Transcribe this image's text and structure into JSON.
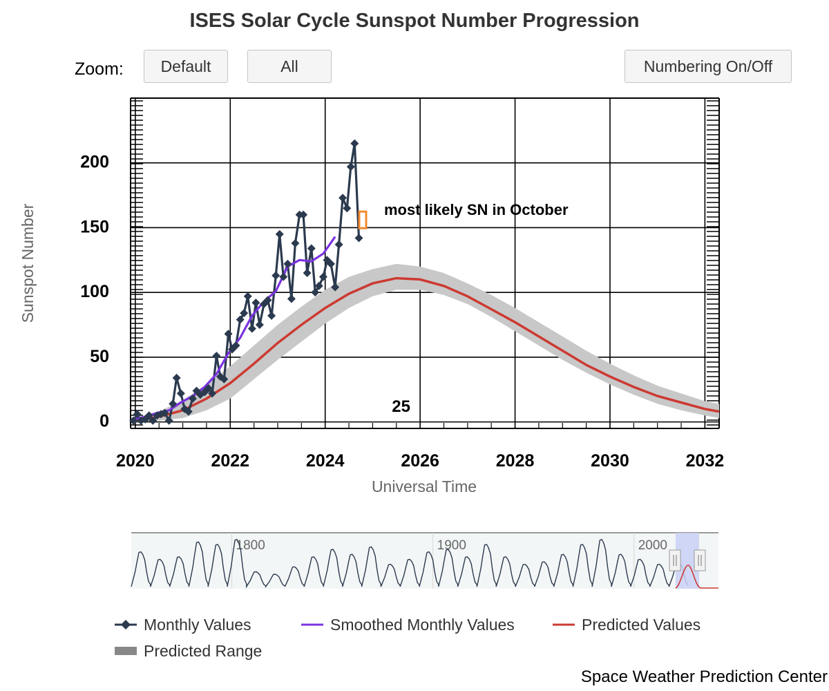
{
  "title": "ISES Solar Cycle Sunspot Number Progression",
  "zoom": {
    "label": "Zoom:",
    "buttons": [
      "Default",
      "All"
    ],
    "numbering_button": "Numbering On/Off"
  },
  "credit": "Space Weather Prediction Center",
  "annotation": "most likely SN in October",
  "cycle_label": "25",
  "colors": {
    "monthly": "#2b3a4e",
    "smoothed": "#7b33e0",
    "predicted": "#cc3a32",
    "range": "#c8c8c8",
    "marker": "#f28a2e",
    "navigator_selection": "#c9d0f5"
  },
  "chart_data": {
    "type": "line",
    "title": "ISES Solar Cycle Sunspot Number Progression",
    "xlabel": "Universal Time",
    "ylabel": "Sunspot Number",
    "xlim": [
      2019.9,
      2032.3
    ],
    "ylim": [
      -5,
      250
    ],
    "x_ticks": [
      "2020",
      "2022",
      "2024",
      "2026",
      "2028",
      "2030",
      "2032"
    ],
    "y_ticks": [
      "0",
      "50",
      "100",
      "150",
      "200"
    ],
    "grid": true,
    "legend_position": "bottom",
    "series": [
      {
        "name": "Monthly Values",
        "style": "line-with-diamond-markers",
        "x": [
          2019.96,
          2020.04,
          2020.12,
          2020.21,
          2020.29,
          2020.37,
          2020.46,
          2020.54,
          2020.62,
          2020.71,
          2020.79,
          2020.87,
          2020.96,
          2021.04,
          2021.12,
          2021.21,
          2021.29,
          2021.37,
          2021.46,
          2021.54,
          2021.62,
          2021.71,
          2021.79,
          2021.87,
          2021.96,
          2022.04,
          2022.12,
          2022.21,
          2022.29,
          2022.37,
          2022.46,
          2022.54,
          2022.62,
          2022.71,
          2022.79,
          2022.87,
          2022.96,
          2023.04,
          2023.12,
          2023.21,
          2023.29,
          2023.37,
          2023.46,
          2023.54,
          2023.62,
          2023.71,
          2023.79,
          2023.87,
          2023.96,
          2024.04,
          2024.12,
          2024.21,
          2024.29,
          2024.37,
          2024.46,
          2024.54,
          2024.62,
          2024.71
        ],
        "y": [
          1,
          6,
          1,
          2,
          5,
          1,
          5,
          6,
          7,
          1,
          14,
          34,
          22,
          10,
          8,
          18,
          24,
          21,
          23,
          26,
          22,
          51,
          35,
          33,
          68,
          56,
          59,
          79,
          84,
          97,
          72,
          92,
          75,
          91,
          94,
          82,
          113,
          145,
          112,
          122,
          95,
          138,
          160,
          160,
          115,
          134,
          100,
          105,
          112,
          125,
          122,
          104,
          137,
          173,
          165,
          197,
          215,
          142
        ]
      },
      {
        "name": "Smoothed Monthly Values",
        "x": [
          2019.96,
          2020.21,
          2020.46,
          2020.71,
          2020.96,
          2021.21,
          2021.46,
          2021.71,
          2021.96,
          2022.21,
          2022.46,
          2022.71,
          2022.96,
          2023.21,
          2023.46,
          2023.71,
          2023.96,
          2024.21
        ],
        "y": [
          2,
          4,
          7,
          9,
          15,
          20,
          27,
          37,
          53,
          65,
          82,
          93,
          101,
          120,
          125,
          124,
          130,
          143
        ]
      },
      {
        "name": "Predicted Values",
        "x": [
          2020.0,
          2020.5,
          2021.0,
          2021.5,
          2022.0,
          2022.5,
          2023.0,
          2023.5,
          2024.0,
          2024.5,
          2025.0,
          2025.5,
          2026.0,
          2026.5,
          2027.0,
          2027.5,
          2028.0,
          2028.5,
          2029.0,
          2029.5,
          2030.0,
          2030.5,
          2031.0,
          2031.5,
          2032.0,
          2032.3
        ],
        "y": [
          1,
          4,
          9,
          18,
          30,
          45,
          61,
          75,
          88,
          99,
          107,
          111,
          110,
          105,
          97,
          87,
          77,
          66,
          55,
          44,
          35,
          27,
          20,
          15,
          10,
          8
        ]
      },
      {
        "name": "Predicted Range",
        "style": "band",
        "x": [
          2020.0,
          2020.5,
          2021.0,
          2021.5,
          2022.0,
          2022.5,
          2023.0,
          2023.5,
          2024.0,
          2024.5,
          2025.0,
          2025.5,
          2026.0,
          2026.5,
          2027.0,
          2027.5,
          2028.0,
          2028.5,
          2029.0,
          2029.5,
          2030.0,
          2030.5,
          2031.0,
          2031.5,
          2032.0,
          2032.3
        ],
        "low": [
          0,
          1,
          3,
          9,
          18,
          33,
          48,
          62,
          76,
          88,
          97,
          102,
          102,
          98,
          91,
          81,
          70,
          59,
          48,
          38,
          29,
          21,
          14,
          9,
          5,
          3
        ],
        "high": [
          3,
          8,
          17,
          29,
          43,
          59,
          75,
          89,
          102,
          112,
          118,
          122,
          120,
          115,
          107,
          98,
          88,
          77,
          66,
          55,
          45,
          36,
          28,
          22,
          16,
          14
        ]
      }
    ],
    "prediction_marker": {
      "x": 2024.79,
      "y": 156,
      "label": "most likely SN in October"
    },
    "cycle_number_label": {
      "x": 2025.6,
      "y": 12,
      "text": "25"
    }
  },
  "navigator": {
    "labels": [
      "1800",
      "1900",
      "2000"
    ],
    "xlim": [
      1750,
      2042
    ]
  },
  "legend": [
    {
      "name": "Monthly Values",
      "color": "#2b3a4e",
      "icon": "diamond-line-icon"
    },
    {
      "name": "Smoothed Monthly Values",
      "color": "#7b33e0",
      "icon": "line-icon"
    },
    {
      "name": "Predicted Values",
      "color": "#cc3a32",
      "icon": "line-icon"
    },
    {
      "name": "Predicted Range",
      "color": "#888888",
      "icon": "band-icon"
    }
  ]
}
